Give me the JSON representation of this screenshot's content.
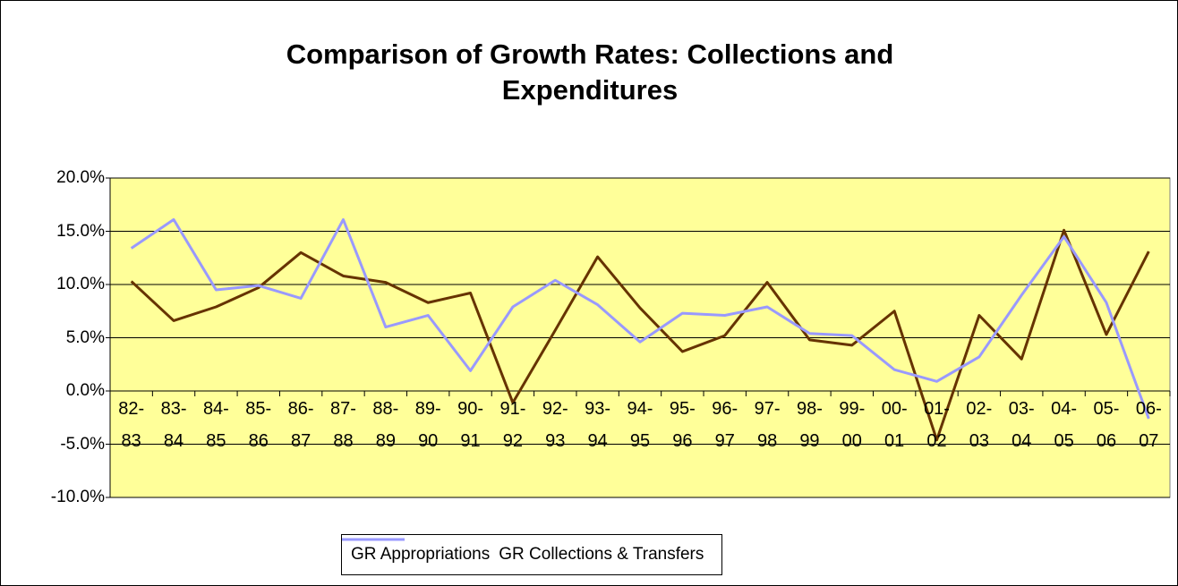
{
  "chart_data": {
    "type": "line",
    "title": "Comparison of Growth Rates: Collections and Expenditures",
    "categories": [
      "82-83",
      "83-84",
      "84-85",
      "85-86",
      "86-87",
      "87-88",
      "88-89",
      "89-90",
      "90-91",
      "91-92",
      "92-93",
      "93-94",
      "94-95",
      "95-96",
      "96-97",
      "97-98",
      "98-99",
      "99-00",
      "00-01",
      "01-02",
      "02-03",
      "03-04",
      "04-05",
      "05-06",
      "06-07"
    ],
    "series": [
      {
        "name": "GR Appropriations",
        "color": "#663300",
        "values": [
          10.3,
          6.6,
          7.9,
          9.7,
          13.0,
          10.8,
          10.2,
          8.3,
          9.2,
          -1.1,
          5.7,
          12.6,
          7.8,
          3.7,
          5.2,
          10.2,
          4.8,
          4.3,
          7.5,
          -4.6,
          7.1,
          3.0,
          15.1,
          5.3,
          13.1
        ]
      },
      {
        "name": "GR Collections & Transfers",
        "color": "#9999ff",
        "values": [
          13.4,
          16.1,
          9.5,
          9.9,
          8.7,
          16.1,
          6.0,
          7.1,
          1.9,
          7.9,
          10.4,
          8.1,
          4.6,
          7.3,
          7.1,
          7.9,
          5.4,
          5.2,
          2.0,
          0.9,
          3.2,
          9.0,
          14.5,
          8.3,
          -2.6
        ]
      }
    ],
    "ylim": [
      -10,
      20
    ],
    "yticks": [
      {
        "value": -10,
        "label": "-10.0%"
      },
      {
        "value": -5,
        "label": "-5.0%"
      },
      {
        "value": 0,
        "label": "0.0%"
      },
      {
        "value": 5,
        "label": "5.0%"
      },
      {
        "value": 10,
        "label": "10.0%"
      },
      {
        "value": 15,
        "label": "15.0%"
      },
      {
        "value": 20,
        "label": "20.0%"
      }
    ],
    "grid": true,
    "legend": "bottom",
    "plot_background": "#ffff99"
  }
}
